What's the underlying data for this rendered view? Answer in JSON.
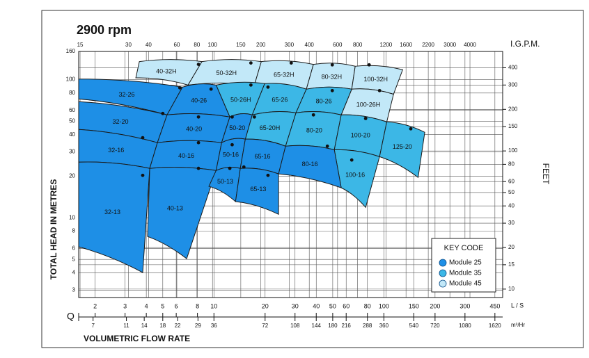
{
  "chart_data": {
    "type": "region",
    "title": "2900 rpm",
    "ylabel": "TOTAL HEAD IN METRES",
    "y2label": "FEET",
    "x2label": "I.G.P.M.",
    "xunit": "L / S",
    "x3unit": "m³/Hr",
    "xaxis_symbol": "Q",
    "xlabel": "VOLUMETRIC  FLOW RATE",
    "xscale": "log",
    "yscale": "log",
    "grid": true,
    "xlim": [
      1.6,
      500
    ],
    "xticks": [
      2,
      3,
      4,
      5,
      6,
      8,
      10,
      20,
      30,
      40,
      50,
      60,
      80,
      100,
      150,
      200,
      300,
      450
    ],
    "x2lim": [
      14.7,
      6390
    ],
    "x2ticks": [
      15,
      30,
      40,
      60,
      80,
      100,
      150,
      200,
      300,
      400,
      600,
      800,
      1200,
      1600,
      2200,
      3000,
      4000
    ],
    "x3lim": [
      5.76,
      1800
    ],
    "x3ticks": [
      7,
      11,
      14,
      18,
      22,
      29,
      36,
      72,
      108,
      144,
      180,
      216,
      288,
      360,
      540,
      720,
      1080,
      1620
    ],
    "ylim": [
      2.65,
      160
    ],
    "yticks": [
      3,
      4,
      5,
      6,
      8,
      10,
      20,
      30,
      40,
      50,
      60,
      80,
      100,
      160
    ],
    "y2lim": [
      8.69,
      525
    ],
    "y2ticks": [
      10,
      15,
      20,
      30,
      40,
      50,
      60,
      80,
      100,
      150,
      200,
      300,
      400
    ],
    "legend_position": "lower right",
    "legend": {
      "title": "KEY CODE",
      "items": [
        {
          "name": "Module  25",
          "color": "#1e8fe6"
        },
        {
          "name": "Module  35",
          "color": "#3cb7e6"
        },
        {
          "name": "Module  45",
          "color": "#c2e8f8"
        }
      ]
    },
    "pumps": [
      {
        "label": "40-32H",
        "module": 2,
        "region": [
          [
            3.64,
            135
          ],
          [
            8.5,
            135
          ],
          [
            7.04,
            91.4
          ],
          [
            3.47,
            103
          ]
        ],
        "bep": [
          8.11,
          129
        ]
      },
      {
        "label": "50-32H",
        "module": 2,
        "region": [
          [
            8.5,
            135
          ],
          [
            19,
            135
          ],
          [
            17.3,
            91.4
          ],
          [
            7.04,
            91.4
          ]
        ],
        "bep": [
          16.5,
          132
        ]
      },
      {
        "label": "65-32H",
        "module": 2,
        "region": [
          [
            19,
            135
          ],
          [
            38.5,
            129
          ],
          [
            35,
            85.4
          ],
          [
            17.3,
            91.4
          ]
        ],
        "bep": [
          28.5,
          132
        ]
      },
      {
        "label": "80-32H",
        "module": 2,
        "region": [
          [
            38.5,
            129
          ],
          [
            67.8,
            125
          ],
          [
            64.7,
            85.4
          ],
          [
            35,
            85.4
          ]
        ],
        "bep": [
          49.7,
          128
        ]
      },
      {
        "label": "100-32H",
        "module": 2,
        "region": [
          [
            67.8,
            125
          ],
          [
            129,
            118
          ],
          [
            114,
            78.5
          ],
          [
            64.7,
            85.4
          ]
        ],
        "bep": [
          81.9,
          128
        ]
      },
      {
        "label": "100-26H",
        "module": 2,
        "region": [
          [
            64.7,
            85.4
          ],
          [
            114,
            78.5
          ],
          [
            104,
            49.5
          ],
          [
            56.1,
            55.6
          ]
        ],
        "bep": [
          94.3,
          83.3
        ]
      },
      {
        "label": "50-26H",
        "module": 1,
        "region": [
          [
            10.3,
            91.4
          ],
          [
            19.9,
            93.6
          ],
          [
            16.8,
            55.6
          ],
          [
            12.4,
            53.7
          ]
        ],
        "bep": [
          16.5,
          91.4
        ]
      },
      {
        "label": "65-26",
        "module": 1,
        "region": [
          [
            19.9,
            93.6
          ],
          [
            35,
            85.4
          ],
          [
            30.4,
            57.6
          ],
          [
            16.8,
            55.6
          ]
        ],
        "bep": [
          20.8,
          88.3
        ]
      },
      {
        "label": "80-26",
        "module": 1,
        "region": [
          [
            35,
            85.4
          ],
          [
            64.7,
            85.4
          ],
          [
            56.1,
            55.6
          ],
          [
            30.4,
            57.6
          ]
        ],
        "bep": [
          49.7,
          83.3
        ]
      },
      {
        "label": "65-20H",
        "module": 1,
        "region": [
          [
            16.8,
            55.6
          ],
          [
            30.4,
            57.6
          ],
          [
            26.4,
            33
          ],
          [
            15.3,
            37.1
          ]
        ],
        "bep": [
          17.3,
          53.7
        ]
      },
      {
        "label": "80-20",
        "module": 1,
        "region": [
          [
            30.4,
            57.6
          ],
          [
            56.1,
            55.6
          ],
          [
            51.1,
            31.1
          ],
          [
            26.4,
            33
          ]
        ],
        "bep": [
          38.5,
          55.6
        ]
      },
      {
        "label": "100-20",
        "module": 1,
        "region": [
          [
            56.1,
            55.6
          ],
          [
            104,
            49.5
          ],
          [
            94.3,
            27.7
          ],
          [
            51.1,
            31.1
          ]
        ],
        "bep": [
          78.1,
          52.4
        ]
      },
      {
        "label": "125-20",
        "module": 1,
        "region": [
          [
            104,
            49.5
          ],
          [
            174,
            41.6
          ],
          [
            159,
            19.6
          ],
          [
            94.3,
            27.7
          ]
        ],
        "bep": [
          144,
          44.1
        ]
      },
      {
        "label": "100-16",
        "module": 1,
        "region": [
          [
            51.1,
            31.1
          ],
          [
            94.3,
            27.7
          ],
          [
            78.1,
            11.9
          ],
          [
            56.1,
            16.5
          ]
        ],
        "bep": [
          64.7,
          26.2
        ]
      },
      {
        "label": "32-26",
        "module": 0,
        "region": [
          [
            1.6,
            101
          ],
          [
            6.53,
            88.3
          ],
          [
            5.3,
            55.6
          ],
          [
            1.6,
            72.5
          ]
        ],
        "bep": [
          6.3,
          87.3
        ]
      },
      {
        "label": "32-20",
        "module": 0,
        "region": [
          [
            1.6,
            69.3
          ],
          [
            5.3,
            55.6
          ],
          [
            4.65,
            35
          ],
          [
            1.6,
            43.6
          ]
        ],
        "bep": [
          5,
          56.9
        ]
      },
      {
        "label": "32-16",
        "module": 0,
        "region": [
          [
            1.6,
            43.6
          ],
          [
            4.65,
            35
          ],
          [
            4.19,
            22.8
          ],
          [
            1.6,
            25.3
          ]
        ],
        "bep": [
          3.81,
          38
        ]
      },
      {
        "label": "32-13",
        "module": 0,
        "region": [
          [
            1.6,
            25.3
          ],
          [
            4.19,
            22.8
          ],
          [
            3.81,
            4.02
          ],
          [
            1.6,
            6.17
          ]
        ],
        "bep": [
          3.81,
          20.3
        ]
      },
      {
        "label": "40-26",
        "module": 0,
        "region": [
          [
            6.53,
            88.3
          ],
          [
            10.3,
            91.4
          ],
          [
            12.4,
            53.7
          ],
          [
            5.3,
            55.6
          ]
        ],
        "bep": [
          9.62,
          85.4
        ]
      },
      {
        "label": "40-20",
        "module": 0,
        "region": [
          [
            5.3,
            55.6
          ],
          [
            12.4,
            53.7
          ],
          [
            11.1,
            35
          ],
          [
            4.65,
            35
          ]
        ],
        "bep": [
          8.11,
          53.7
        ]
      },
      {
        "label": "40-16",
        "module": 0,
        "region": [
          [
            4.65,
            35
          ],
          [
            11.1,
            35
          ],
          [
            10.3,
            22
          ],
          [
            4.19,
            22.8
          ]
        ],
        "bep": [
          8.11,
          35
        ]
      },
      {
        "label": "40-13",
        "module": 0,
        "region": [
          [
            4.19,
            22.8
          ],
          [
            10.3,
            22
          ],
          [
            6.91,
            5.06
          ],
          [
            4.07,
            7.33
          ]
        ],
        "bep": [
          8.11,
          22.8
        ]
      },
      {
        "label": "50-20",
        "module": 0,
        "region": [
          [
            12.4,
            53.7
          ],
          [
            16.8,
            55.6
          ],
          [
            15.3,
            37.1
          ],
          [
            11.1,
            35
          ]
        ],
        "bep": [
          12.8,
          53.7
        ]
      },
      {
        "label": "50-16",
        "module": 0,
        "region": [
          [
            11.1,
            35
          ],
          [
            15.3,
            37.1
          ],
          [
            14.3,
            22.8
          ],
          [
            10.3,
            22
          ]
        ],
        "bep": [
          12.8,
          33.8
        ]
      },
      {
        "label": "50-13",
        "module": 0,
        "region": [
          [
            10.3,
            22
          ],
          [
            14.3,
            22.8
          ],
          [
            13.4,
            13.1
          ],
          [
            9.34,
            16.9
          ]
        ],
        "bep": [
          12.4,
          22.8
        ]
      },
      {
        "label": "65-16",
        "module": 0,
        "region": [
          [
            15.3,
            37.1
          ],
          [
            26.4,
            33
          ],
          [
            24,
            20.8
          ],
          [
            14.3,
            22.8
          ]
        ],
        "bep": [
          15,
          23.3
        ]
      },
      {
        "label": "65-13",
        "module": 0,
        "region": [
          [
            14.3,
            22.8
          ],
          [
            24,
            20.8
          ],
          [
            24,
            10.6
          ],
          [
            13.4,
            13.1
          ]
        ],
        "bep": [
          20.8,
          20.3
        ]
      },
      {
        "label": "80-16",
        "module": 0,
        "region": [
          [
            26.4,
            33
          ],
          [
            51.1,
            31.1
          ],
          [
            56.1,
            16.5
          ],
          [
            24,
            20.8
          ]
        ],
        "bep": [
          46.5,
          33
        ]
      }
    ]
  }
}
